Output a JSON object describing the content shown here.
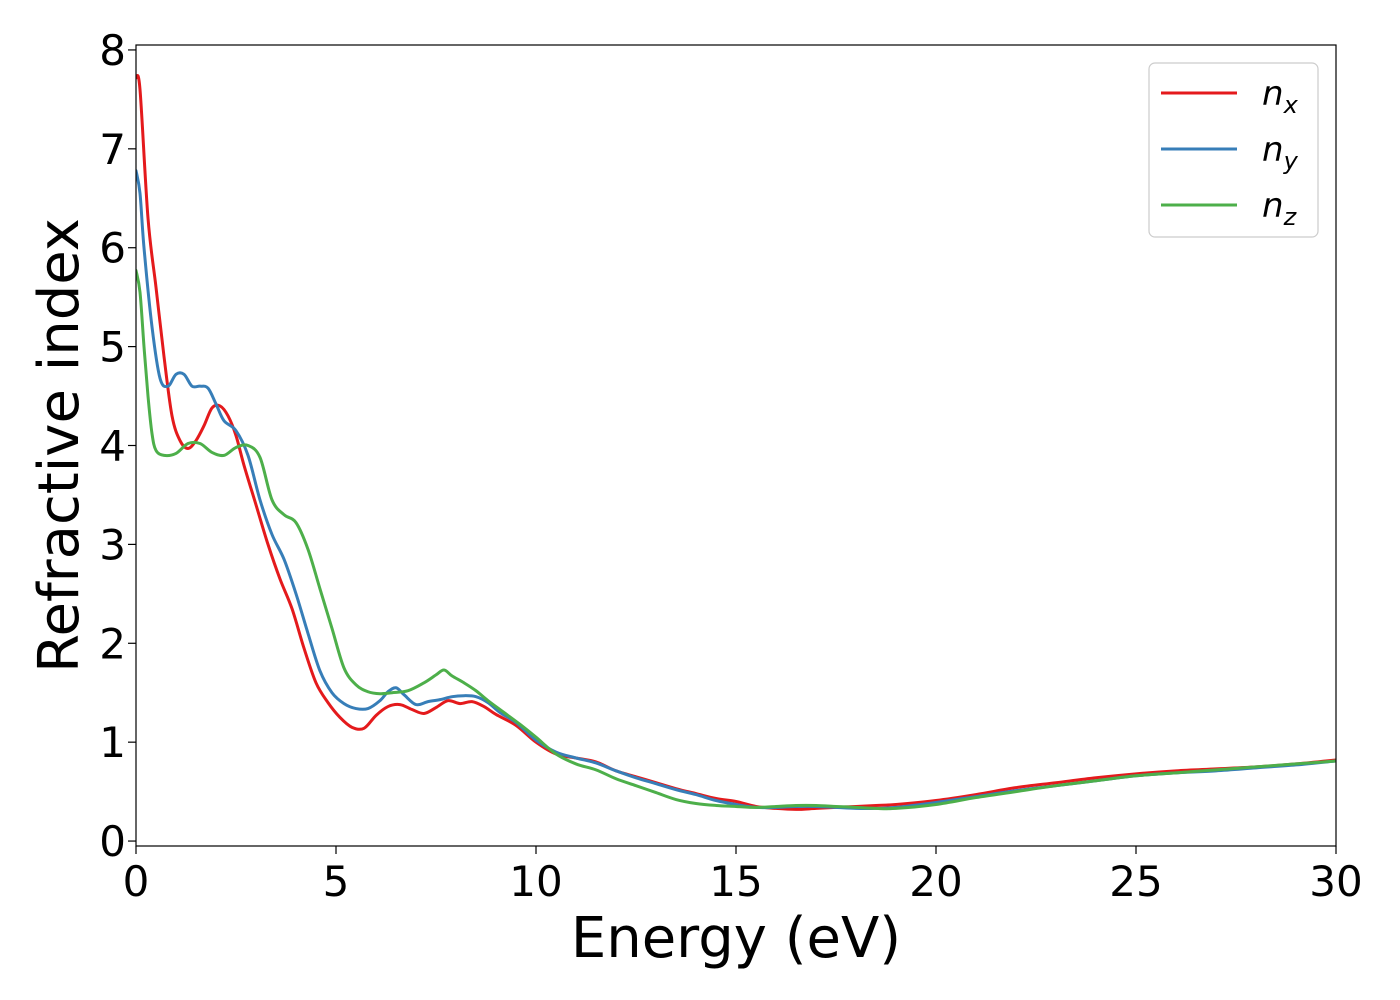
{
  "chart_data": {
    "type": "line",
    "xlabel": "Energy (eV)",
    "ylabel": "Refractive index",
    "xlim": [
      0,
      30
    ],
    "ylim": [
      -0.05,
      8.05
    ],
    "xticks": [
      0,
      5,
      10,
      15,
      20,
      25,
      30
    ],
    "xtick_labels": [
      "0",
      "5",
      "10",
      "15",
      "20",
      "25",
      "30"
    ],
    "yticks": [
      0,
      1,
      2,
      3,
      4,
      5,
      6,
      7,
      8
    ],
    "ytick_labels": [
      "0",
      "1",
      "2",
      "3",
      "4",
      "5",
      "6",
      "7",
      "8"
    ],
    "grid": false,
    "legend_position": "top-right",
    "series": [
      {
        "name": "n",
        "subscript": "x",
        "color": "#e41a1c",
        "x": [
          0,
          0.1,
          0.3,
          0.5,
          0.7,
          0.9,
          1.1,
          1.3,
          1.5,
          1.7,
          1.9,
          2.1,
          2.3,
          2.5,
          2.7,
          3.0,
          3.3,
          3.6,
          3.9,
          4.2,
          4.5,
          4.8,
          5.1,
          5.4,
          5.7,
          6.0,
          6.3,
          6.6,
          6.9,
          7.2,
          7.5,
          7.8,
          8.1,
          8.4,
          8.7,
          9.0,
          9.5,
          10.0,
          10.5,
          11.0,
          11.5,
          12.0,
          12.5,
          13.0,
          13.5,
          14.0,
          14.5,
          15.0,
          15.5,
          16.0,
          16.5,
          17.0,
          17.5,
          18.0,
          18.5,
          19.0,
          20.0,
          21.0,
          22.0,
          23.0,
          24.0,
          25.0,
          26.0,
          27.0,
          28.0,
          29.0,
          30.0
        ],
        "y": [
          7.72,
          7.6,
          6.3,
          5.6,
          4.9,
          4.3,
          4.05,
          3.97,
          4.05,
          4.2,
          4.38,
          4.4,
          4.3,
          4.1,
          3.8,
          3.4,
          3.0,
          2.65,
          2.35,
          1.95,
          1.6,
          1.4,
          1.25,
          1.15,
          1.14,
          1.27,
          1.36,
          1.38,
          1.33,
          1.29,
          1.35,
          1.42,
          1.39,
          1.41,
          1.36,
          1.28,
          1.17,
          1.0,
          0.88,
          0.84,
          0.8,
          0.71,
          0.65,
          0.59,
          0.53,
          0.48,
          0.43,
          0.4,
          0.35,
          0.33,
          0.32,
          0.33,
          0.34,
          0.35,
          0.36,
          0.37,
          0.41,
          0.47,
          0.54,
          0.59,
          0.64,
          0.68,
          0.71,
          0.73,
          0.75,
          0.78,
          0.82
        ]
      },
      {
        "name": "n",
        "subscript": "y",
        "color": "#377eb8",
        "x": [
          0,
          0.1,
          0.2,
          0.4,
          0.6,
          0.8,
          1.0,
          1.2,
          1.4,
          1.6,
          1.8,
          2.0,
          2.2,
          2.5,
          2.8,
          3.1,
          3.4,
          3.7,
          4.0,
          4.3,
          4.6,
          4.9,
          5.2,
          5.5,
          5.8,
          6.1,
          6.3,
          6.5,
          6.7,
          7.0,
          7.3,
          7.6,
          7.9,
          8.2,
          8.5,
          8.8,
          9.1,
          9.5,
          10.0,
          10.5,
          11.0,
          11.5,
          12.0,
          12.5,
          13.0,
          13.5,
          14.0,
          14.5,
          15.0,
          15.5,
          16.0,
          16.5,
          17.0,
          17.5,
          18.0,
          18.5,
          19.0,
          20.0,
          21.0,
          22.0,
          23.0,
          24.0,
          25.0,
          26.0,
          27.0,
          28.0,
          29.0,
          30.0
        ],
        "y": [
          6.78,
          6.55,
          6.0,
          5.2,
          4.68,
          4.6,
          4.72,
          4.72,
          4.6,
          4.6,
          4.58,
          4.42,
          4.25,
          4.15,
          3.9,
          3.45,
          3.1,
          2.85,
          2.5,
          2.1,
          1.72,
          1.5,
          1.39,
          1.34,
          1.34,
          1.42,
          1.51,
          1.55,
          1.48,
          1.38,
          1.41,
          1.43,
          1.46,
          1.47,
          1.46,
          1.4,
          1.3,
          1.2,
          1.02,
          0.9,
          0.84,
          0.79,
          0.71,
          0.64,
          0.58,
          0.52,
          0.47,
          0.41,
          0.37,
          0.34,
          0.34,
          0.35,
          0.35,
          0.34,
          0.33,
          0.33,
          0.34,
          0.39,
          0.45,
          0.51,
          0.56,
          0.61,
          0.66,
          0.69,
          0.71,
          0.74,
          0.77,
          0.81
        ]
      },
      {
        "name": "n",
        "subscript": "z",
        "color": "#4daf4a",
        "x": [
          0,
          0.1,
          0.2,
          0.3,
          0.4,
          0.5,
          0.7,
          1.0,
          1.3,
          1.6,
          1.9,
          2.2,
          2.5,
          2.8,
          3.1,
          3.4,
          3.7,
          4.0,
          4.3,
          4.6,
          4.9,
          5.2,
          5.5,
          5.8,
          6.1,
          6.4,
          6.8,
          7.2,
          7.5,
          7.7,
          7.9,
          8.2,
          8.5,
          8.8,
          9.2,
          9.6,
          10.0,
          10.5,
          11.0,
          11.5,
          12.0,
          12.5,
          13.0,
          13.5,
          14.0,
          14.5,
          15.0,
          15.5,
          16.0,
          16.5,
          17.0,
          17.5,
          18.0,
          18.5,
          19.0,
          20.0,
          21.0,
          22.0,
          23.0,
          24.0,
          25.0,
          26.0,
          27.0,
          28.0,
          29.0,
          30.0
        ],
        "y": [
          5.77,
          5.55,
          5.0,
          4.5,
          4.12,
          3.95,
          3.9,
          3.92,
          4.02,
          4.02,
          3.93,
          3.9,
          3.98,
          4.0,
          3.88,
          3.45,
          3.3,
          3.22,
          2.95,
          2.55,
          2.15,
          1.75,
          1.58,
          1.51,
          1.49,
          1.5,
          1.52,
          1.6,
          1.68,
          1.73,
          1.67,
          1.6,
          1.52,
          1.42,
          1.3,
          1.18,
          1.05,
          0.88,
          0.78,
          0.72,
          0.63,
          0.56,
          0.49,
          0.42,
          0.38,
          0.36,
          0.35,
          0.34,
          0.35,
          0.36,
          0.36,
          0.35,
          0.34,
          0.33,
          0.33,
          0.37,
          0.44,
          0.5,
          0.56,
          0.61,
          0.66,
          0.69,
          0.72,
          0.75,
          0.78,
          0.81
        ]
      }
    ]
  }
}
